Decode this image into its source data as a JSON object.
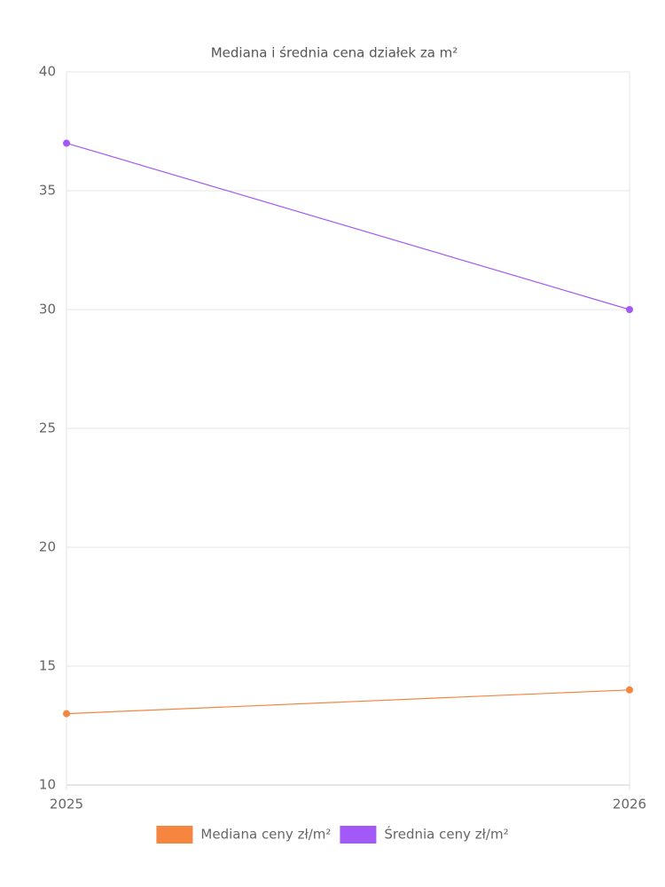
{
  "chart_data": {
    "type": "line",
    "title": "Mediana i średnia cena działek za m²",
    "categories": [
      "2025",
      "2026"
    ],
    "series": [
      {
        "name": "Mediana ceny zł/m²",
        "color": "#f5853f",
        "values": [
          13,
          14
        ]
      },
      {
        "name": "Średnia ceny zł/m²",
        "color": "#a259f7",
        "values": [
          37,
          30
        ]
      }
    ],
    "ylim": [
      10,
      40
    ],
    "yticks": [
      10,
      15,
      20,
      25,
      30,
      35,
      40
    ],
    "grid": true,
    "legend": "bottom"
  }
}
